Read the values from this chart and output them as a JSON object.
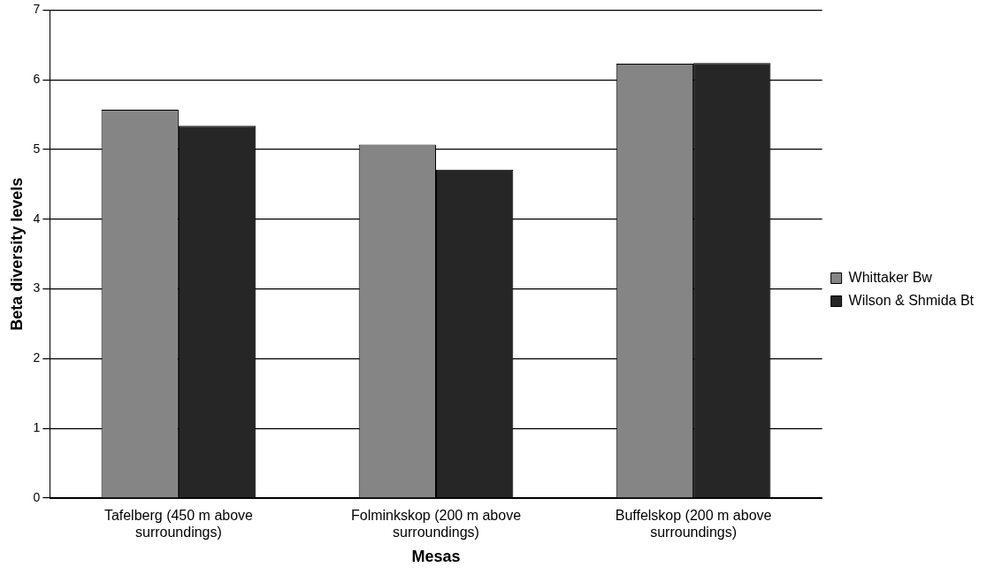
{
  "chart_data": {
    "type": "bar",
    "xlabel": "Mesas",
    "ylabel": "Beta diversity levels",
    "categories": [
      "Tafelberg (450 m above surroundings)",
      "Folminkskop (200 m above surroundings)",
      "Buffelskop (200 m above surroundings)"
    ],
    "series": [
      {
        "name": "Whittaker Bw",
        "color": "#858585",
        "values": [
          5.57,
          5.07,
          6.23
        ]
      },
      {
        "name": "Wilson & Shmida Bt",
        "color": "#262626",
        "values": [
          5.34,
          4.71,
          6.24
        ]
      }
    ],
    "ylim": [
      0,
      7
    ],
    "yticks": [
      0,
      1,
      2,
      3,
      4,
      5,
      6,
      7
    ],
    "grid": "y",
    "legend": "right"
  }
}
